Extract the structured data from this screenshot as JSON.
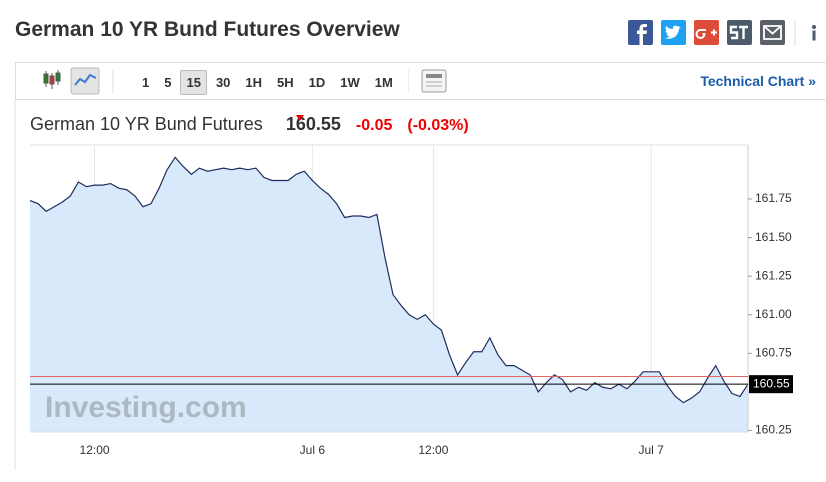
{
  "header": {
    "title": "German 10 YR Bund Futures Overview"
  },
  "toolbar": {
    "intervals": [
      "1",
      "5",
      "15",
      "30",
      "1H",
      "5H",
      "1D",
      "1W",
      "1M"
    ],
    "link": "Technical Chart »"
  },
  "quote": {
    "name": "German 10 YR Bund Futures",
    "price": 160.55,
    "change": -0.05,
    "change_pct": "(-0.03%)"
  },
  "chart_data": {
    "type": "area",
    "color": "#1f2d5c",
    "fill": "#d7e9fb",
    "categories": [
      null,
      null,
      null,
      null,
      null,
      null,
      null,
      null,
      "12:00",
      null,
      null,
      null,
      null,
      null,
      null,
      null,
      null,
      null,
      null,
      null,
      null,
      null,
      null,
      null,
      null,
      null,
      null,
      null,
      null,
      null,
      null,
      null,
      null,
      null,
      null,
      "Jul 6",
      null,
      null,
      null,
      null,
      null,
      null,
      null,
      null,
      null,
      null,
      null,
      null,
      null,
      null,
      "12:00",
      null,
      null,
      null,
      null,
      null,
      null,
      null,
      null,
      null,
      null,
      null,
      null,
      null,
      null,
      null,
      null,
      null,
      null,
      null,
      null,
      null,
      null,
      null,
      null,
      null,
      null,
      "Jul 7",
      null,
      null,
      null,
      null,
      null,
      null,
      null,
      null,
      null,
      null,
      null,
      null
    ],
    "values": [
      161.74,
      161.72,
      161.67,
      161.7,
      161.73,
      161.77,
      161.86,
      161.83,
      161.84,
      161.84,
      161.85,
      161.82,
      161.81,
      161.77,
      161.7,
      161.72,
      161.82,
      161.94,
      162.02,
      161.96,
      161.91,
      161.95,
      161.93,
      161.94,
      161.95,
      161.94,
      161.95,
      161.94,
      161.95,
      161.89,
      161.87,
      161.87,
      161.87,
      161.91,
      161.93,
      161.87,
      161.82,
      161.78,
      161.72,
      161.63,
      161.64,
      161.64,
      161.63,
      161.65,
      161.37,
      161.13,
      161.06,
      161.0,
      160.97,
      161.0,
      160.94,
      160.9,
      160.74,
      160.61,
      160.69,
      160.76,
      160.76,
      160.85,
      160.74,
      160.67,
      160.67,
      160.64,
      160.61,
      160.5,
      160.56,
      160.61,
      160.58,
      160.5,
      160.53,
      160.51,
      160.56,
      160.53,
      160.52,
      160.55,
      160.52,
      160.57,
      160.63,
      160.63,
      160.63,
      160.54,
      160.47,
      160.43,
      160.46,
      160.5,
      160.59,
      160.67,
      160.57,
      160.49,
      160.47,
      160.55
    ],
    "ylim": [
      160.24,
      162.1
    ],
    "yticks": [
      160.25,
      160.75,
      {
        "value": 161,
        "label": "161.00"
      },
      161.25,
      {
        "value": 161.5,
        "label": "161.50"
      },
      161.75
    ],
    "prev_close": 160.6,
    "prev_close_color": "#e06666",
    "last_value": 160.55,
    "watermark": "Investing.com",
    "grid": true
  }
}
